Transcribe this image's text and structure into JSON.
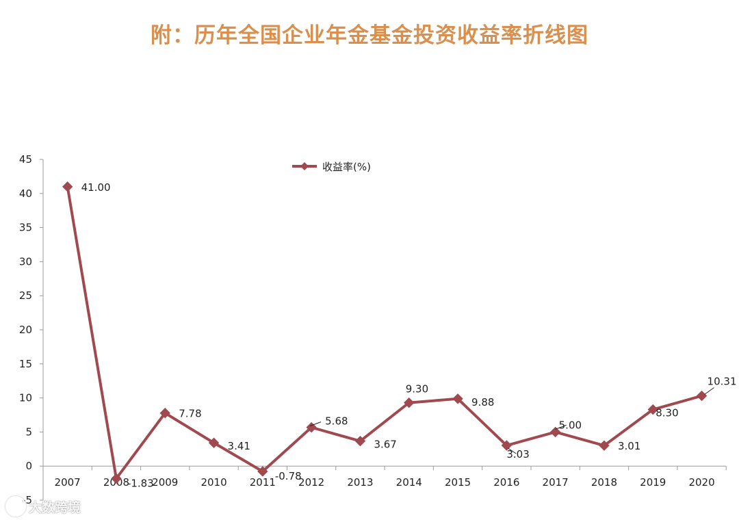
{
  "title": "附：历年全国企业年金基金投资收益率折线图",
  "watermark": "大数跨境",
  "colors": {
    "title": "#d98f4e",
    "series": "#a0494f",
    "axis": "#9a9a9a",
    "text": "#222222"
  },
  "chart_data": {
    "type": "line",
    "categories": [
      "2007",
      "2008",
      "2009",
      "2010",
      "2011",
      "2012",
      "2013",
      "2014",
      "2015",
      "2016",
      "2017",
      "2018",
      "2019",
      "2020"
    ],
    "series": [
      {
        "name": "收益率(%)",
        "values": [
          41.0,
          -1.83,
          7.78,
          3.41,
          -0.78,
          5.68,
          3.67,
          9.3,
          9.88,
          3.03,
          5.0,
          3.01,
          8.3,
          10.31
        ],
        "labels": [
          "41.00",
          "-1.83",
          "7.78",
          "3.41",
          "-0.78",
          "5.68",
          "3.67",
          "9.30",
          "9.88",
          "3.03",
          "5.00",
          "3.01",
          "8.30",
          "10.31"
        ]
      }
    ],
    "ylim": [
      -5,
      45
    ],
    "yticks": [
      "-5",
      "0",
      "5",
      "10",
      "15",
      "20",
      "25",
      "30",
      "35",
      "40",
      "45"
    ],
    "ytick_values": [
      -5,
      0,
      5,
      10,
      15,
      20,
      25,
      30,
      35,
      40,
      45
    ],
    "grid": false,
    "legend": "top-center",
    "marker": "diamond"
  }
}
